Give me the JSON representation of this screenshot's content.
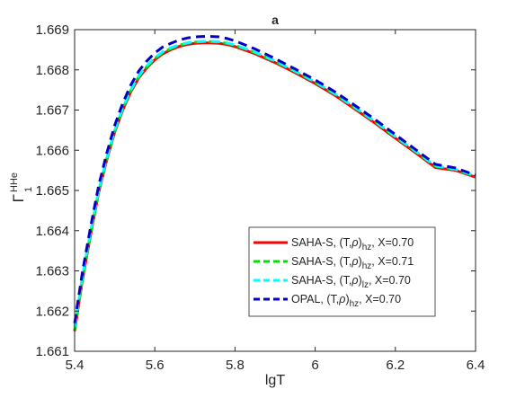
{
  "chart_data": {
    "type": "line",
    "title": "a",
    "xlabel": "lgT",
    "ylabel_main": "Γ",
    "ylabel_sup": "HHe",
    "ylabel_sub": "1",
    "xlim": [
      5.4,
      6.4
    ],
    "ylim": [
      1.661,
      1.669
    ],
    "xticks": [
      "5.4",
      "5.6",
      "5.8",
      "6",
      "6.2",
      "6.4"
    ],
    "yticks": [
      "1.661",
      "1.662",
      "1.663",
      "1.664",
      "1.665",
      "1.666",
      "1.667",
      "1.668",
      "1.669"
    ],
    "grid": false,
    "legend_position": "lower-right",
    "series": [
      {
        "name_parts": [
          "SAHA-S, (T,",
          "ρ",
          ")",
          "hz",
          ", X=0.70"
        ],
        "color": "#ff0000",
        "dash": "solid",
        "x": [
          5.4,
          5.42,
          5.44,
          5.46,
          5.48,
          5.5,
          5.52,
          5.54,
          5.56,
          5.58,
          5.6,
          5.62,
          5.64,
          5.66,
          5.68,
          5.7,
          5.72,
          5.74,
          5.76,
          5.78,
          5.8,
          5.85,
          5.9,
          5.95,
          6.0,
          6.05,
          6.1,
          6.15,
          6.2,
          6.25,
          6.3,
          6.35,
          6.4
        ],
        "y": [
          1.6615,
          1.6628,
          1.6639,
          1.66495,
          1.66575,
          1.66645,
          1.667,
          1.66745,
          1.6678,
          1.66805,
          1.66825,
          1.6684,
          1.6685,
          1.66858,
          1.66863,
          1.66866,
          1.66867,
          1.66867,
          1.66866,
          1.66863,
          1.66858,
          1.6684,
          1.66818,
          1.66793,
          1.66766,
          1.66736,
          1.66702,
          1.66667,
          1.6663,
          1.66594,
          1.66557,
          1.6655,
          1.66533
        ]
      },
      {
        "name_parts": [
          "SAHA-S, (T,",
          "ρ",
          ")",
          "hz",
          ", X=0.71"
        ],
        "color": "#00e000",
        "dash": "dashed",
        "x": [
          5.4,
          5.42,
          5.44,
          5.46,
          5.48,
          5.5,
          5.52,
          5.54,
          5.56,
          5.58,
          5.6,
          5.62,
          5.64,
          5.66,
          5.68,
          5.7,
          5.72,
          5.74,
          5.76,
          5.78,
          5.8,
          5.85,
          5.9,
          5.95,
          6.0,
          6.05,
          6.1,
          6.15,
          6.2,
          6.25,
          6.3,
          6.35,
          6.4
        ],
        "y": [
          1.66153,
          1.66283,
          1.66393,
          1.66498,
          1.66578,
          1.66648,
          1.66703,
          1.66748,
          1.66783,
          1.66808,
          1.66828,
          1.66843,
          1.66853,
          1.66861,
          1.66866,
          1.66869,
          1.6687,
          1.6687,
          1.66869,
          1.66866,
          1.66861,
          1.66843,
          1.66821,
          1.66796,
          1.66769,
          1.66739,
          1.66705,
          1.6667,
          1.66633,
          1.66597,
          1.6656,
          1.66552,
          1.66535
        ]
      },
      {
        "name_parts": [
          "SAHA-S, (T,",
          "ρ",
          ")",
          "lz",
          ", X=0.70"
        ],
        "color": "#00ffff",
        "dash": "dashed",
        "x": [
          5.4,
          5.42,
          5.44,
          5.46,
          5.48,
          5.5,
          5.52,
          5.54,
          5.56,
          5.58,
          5.6,
          5.62,
          5.64,
          5.66,
          5.68,
          5.7,
          5.72,
          5.74,
          5.76,
          5.78,
          5.8,
          5.85,
          5.9,
          5.95,
          6.0,
          6.05,
          6.1,
          6.15,
          6.2,
          6.25,
          6.3,
          6.35,
          6.4
        ],
        "y": [
          1.6616,
          1.6629,
          1.664,
          1.665,
          1.6658,
          1.6665,
          1.66705,
          1.6675,
          1.66785,
          1.6681,
          1.6683,
          1.66845,
          1.66855,
          1.66862,
          1.66867,
          1.6687,
          1.66871,
          1.66871,
          1.6687,
          1.66867,
          1.66862,
          1.66844,
          1.66822,
          1.66797,
          1.6677,
          1.6674,
          1.66706,
          1.66671,
          1.66634,
          1.66598,
          1.66561,
          1.66553,
          1.66536
        ]
      },
      {
        "name_parts": [
          "OPAL,   (T,",
          "ρ",
          ")",
          "hz",
          ", X=0.70"
        ],
        "color": "#0000c8",
        "dash": "dashed",
        "x": [
          5.4,
          5.42,
          5.44,
          5.46,
          5.48,
          5.5,
          5.52,
          5.54,
          5.56,
          5.58,
          5.6,
          5.62,
          5.64,
          5.66,
          5.68,
          5.7,
          5.72,
          5.74,
          5.76,
          5.78,
          5.8,
          5.85,
          5.9,
          5.95,
          6.0,
          6.05,
          6.1,
          6.15,
          6.2,
          6.25,
          6.3,
          6.35,
          6.4
        ],
        "y": [
          1.6617,
          1.663,
          1.6641,
          1.66512,
          1.66592,
          1.66662,
          1.66717,
          1.66762,
          1.66797,
          1.66822,
          1.66842,
          1.66857,
          1.66866,
          1.66874,
          1.66879,
          1.66882,
          1.66883,
          1.66883,
          1.66882,
          1.66878,
          1.66872,
          1.66852,
          1.66828,
          1.66802,
          1.66775,
          1.66745,
          1.66711,
          1.66676,
          1.66639,
          1.66602,
          1.66565,
          1.66556,
          1.66538
        ]
      }
    ]
  }
}
